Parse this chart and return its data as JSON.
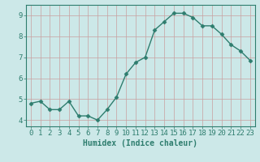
{
  "x": [
    0,
    1,
    2,
    3,
    4,
    5,
    6,
    7,
    8,
    9,
    10,
    11,
    12,
    13,
    14,
    15,
    16,
    17,
    18,
    19,
    20,
    21,
    22,
    23
  ],
  "y": [
    4.8,
    4.9,
    4.5,
    4.5,
    4.9,
    4.2,
    4.2,
    4.0,
    4.5,
    5.1,
    6.2,
    6.75,
    7.0,
    8.3,
    8.7,
    9.1,
    9.1,
    8.9,
    8.5,
    8.5,
    8.1,
    7.6,
    7.3,
    6.85
  ],
  "line_color": "#2e7d6e",
  "marker": "D",
  "marker_size": 2.5,
  "line_width": 1.0,
  "bg_color": "#cce8e8",
  "grid_color": "#c8a0a0",
  "xlabel": "Humidex (Indice chaleur)",
  "xlabel_fontsize": 7,
  "xtick_labels": [
    "0",
    "1",
    "2",
    "3",
    "4",
    "5",
    "6",
    "7",
    "8",
    "9",
    "10",
    "11",
    "12",
    "13",
    "14",
    "15",
    "16",
    "17",
    "18",
    "19",
    "20",
    "21",
    "22",
    "23"
  ],
  "ytick_labels": [
    "4",
    "5",
    "6",
    "7",
    "8",
    "9"
  ],
  "yticks": [
    4,
    5,
    6,
    7,
    8,
    9
  ],
  "ylim": [
    3.7,
    9.5
  ],
  "xlim": [
    -0.5,
    23.5
  ],
  "tick_fontsize": 6.5,
  "axis_color": "#2e7d6e",
  "title": ""
}
